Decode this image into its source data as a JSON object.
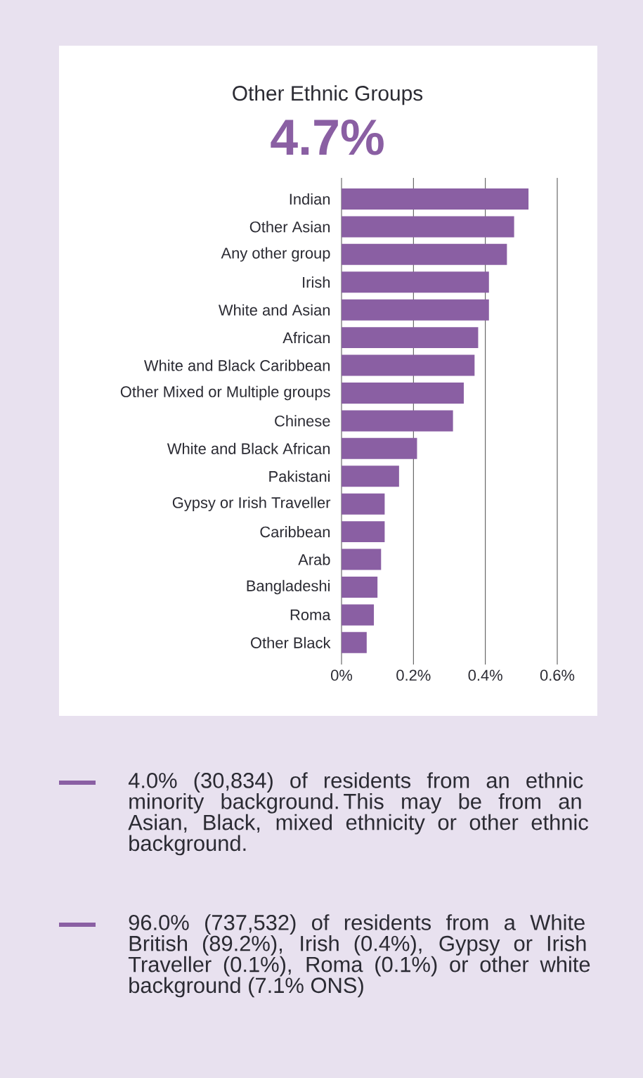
{
  "chart_data": {
    "type": "bar",
    "orientation": "horizontal",
    "title": "Other Ethnic Groups",
    "subtitle": "4.7%",
    "categories": [
      "Indian",
      "Other Asian",
      "Any other group",
      "Irish",
      "White and Asian",
      "African",
      "White and Black Caribbean",
      "Other Mixed or Multiple groups",
      "Chinese",
      "White and Black African",
      "Pakistani",
      "Gypsy or Irish Traveller",
      "Caribbean",
      "Arab",
      "Bangladeshi",
      "Roma",
      "Other Black"
    ],
    "values": [
      0.52,
      0.48,
      0.46,
      0.41,
      0.41,
      0.38,
      0.37,
      0.34,
      0.31,
      0.21,
      0.16,
      0.12,
      0.12,
      0.11,
      0.1,
      0.09,
      0.07
    ],
    "color": "#8a5fa3",
    "xlim": [
      0,
      0.6
    ],
    "xticks": [
      {
        "value": 0,
        "label": "0%"
      },
      {
        "value": 0.2,
        "label": "0.2%"
      },
      {
        "value": 0.4,
        "label": "0.4%"
      },
      {
        "value": 0.6,
        "label": "0.6%"
      }
    ],
    "grid": "x",
    "annotations": [
      "4.0% (30,834) of residents from an ethnic minority background. This may be from an Asian, Black, mixed ethnicity or other ethnic background.",
      "96.0% (737,532) of residents from a White British (89.2%), Irish (0.4%), Gypsy or Irish Traveller (0.1%), Roma (0.1%) or other white background (7.1% ONS)"
    ]
  }
}
